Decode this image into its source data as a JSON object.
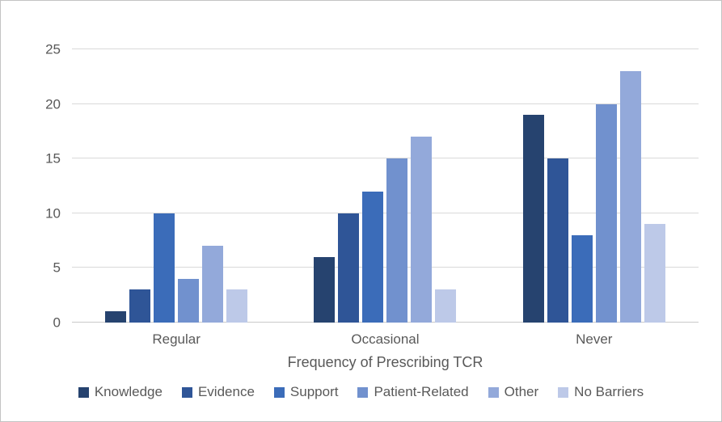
{
  "chart_data": {
    "type": "bar",
    "title": "",
    "xlabel": "Frequency of Prescribing TCR",
    "ylabel": "",
    "ylim": [
      0,
      25
    ],
    "yticks": [
      0,
      5,
      10,
      15,
      20,
      25
    ],
    "grid": true,
    "legend_position": "bottom",
    "categories": [
      "Regular",
      "Occasional",
      "Never"
    ],
    "series": [
      {
        "name": "Knowledge",
        "color": "#26436F",
        "values": [
          1,
          6,
          19
        ]
      },
      {
        "name": "Evidence",
        "color": "#2F5597",
        "values": [
          3,
          10,
          15
        ]
      },
      {
        "name": "Support",
        "color": "#3B6CB9",
        "values": [
          10,
          12,
          8
        ]
      },
      {
        "name": "Patient-Related",
        "color": "#7191CE",
        "values": [
          4,
          15,
          20
        ]
      },
      {
        "name": "Other",
        "color": "#93A9DA",
        "values": [
          7,
          17,
          23
        ]
      },
      {
        "name": "No Barriers",
        "color": "#BDC9E8",
        "values": [
          3,
          3,
          9
        ]
      }
    ]
  }
}
